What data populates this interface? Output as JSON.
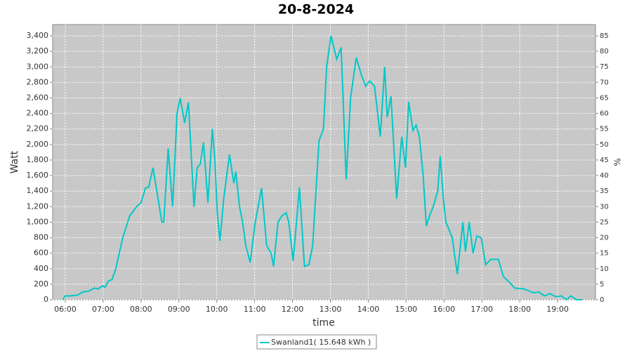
{
  "chart_data": {
    "type": "line",
    "title": "20-8-2024",
    "x_label": "time",
    "y_label": "Watt",
    "y2_label": "%",
    "x": [
      "05:56",
      "06:00",
      "06:08",
      "06:19",
      "06:28",
      "06:37",
      "06:46",
      "06:52",
      "06:59",
      "07:03",
      "07:08",
      "07:14",
      "07:20",
      "07:31",
      "07:42",
      "07:53",
      "08:00",
      "08:07",
      "08:12",
      "08:19",
      "08:27",
      "08:33",
      "08:36",
      "08:43",
      "08:50",
      "08:57",
      "09:02",
      "09:09",
      "09:15",
      "09:24",
      "09:29",
      "09:34",
      "09:39",
      "09:46",
      "09:53",
      "09:57",
      "10:01",
      "10:05",
      "10:11",
      "10:20",
      "10:27",
      "10:30",
      "10:36",
      "10:41",
      "10:46",
      "10:53",
      "11:01",
      "11:11",
      "11:19",
      "11:26",
      "11:30",
      "11:37",
      "11:43",
      "11:50",
      "11:54",
      "12:01",
      "12:11",
      "12:19",
      "12:26",
      "12:32",
      "12:42",
      "12:49",
      "12:54",
      "13:01",
      "13:10",
      "13:17",
      "13:25",
      "13:32",
      "13:41",
      "13:49",
      "13:56",
      "14:02",
      "14:10",
      "14:19",
      "14:26",
      "14:30",
      "14:36",
      "14:45",
      "14:53",
      "14:59",
      "15:04",
      "15:11",
      "15:16",
      "15:21",
      "15:27",
      "15:32",
      "15:38",
      "15:43",
      "15:50",
      "15:54",
      "15:59",
      "16:03",
      "16:13",
      "16:21",
      "16:30",
      "16:34",
      "16:40",
      "16:46",
      "16:52",
      "16:59",
      "17:06",
      "17:14",
      "17:26",
      "17:34",
      "17:43",
      "17:52",
      "18:07",
      "18:21",
      "18:30",
      "18:39",
      "18:48",
      "18:57",
      "19:06",
      "19:14",
      "19:21",
      "19:30",
      "19:39"
    ],
    "series": [
      {
        "name": "Swanland1( 15.648 kWh )",
        "color": "#00c8c8",
        "values": [
          0,
          50,
          50,
          60,
          100,
          110,
          150,
          140,
          180,
          160,
          240,
          260,
          400,
          800,
          1080,
          1200,
          1250,
          1440,
          1450,
          1700,
          1300,
          1000,
          1000,
          1950,
          1200,
          2400,
          2600,
          2280,
          2540,
          1200,
          1700,
          1750,
          2030,
          1250,
          2200,
          1800,
          1100,
          760,
          1300,
          1870,
          1500,
          1650,
          1200,
          1000,
          700,
          480,
          1000,
          1440,
          700,
          600,
          430,
          1000,
          1080,
          1120,
          1000,
          500,
          1450,
          430,
          450,
          700,
          2050,
          2200,
          3000,
          3400,
          3100,
          3250,
          1550,
          2600,
          3120,
          2900,
          2750,
          2820,
          2750,
          2100,
          3000,
          2350,
          2620,
          1300,
          2100,
          1700,
          2550,
          2180,
          2250,
          2100,
          1600,
          950,
          1100,
          1200,
          1400,
          1850,
          1300,
          1000,
          800,
          330,
          1000,
          620,
          1000,
          600,
          820,
          800,
          450,
          520,
          520,
          300,
          230,
          150,
          140,
          90,
          100,
          50,
          80,
          40,
          50,
          0,
          50,
          0,
          0
        ]
      }
    ],
    "xlim": [
      "05:40",
      "20:00"
    ],
    "xticks": [
      "06:00",
      "07:00",
      "08:00",
      "09:00",
      "10:00",
      "11:00",
      "12:00",
      "13:00",
      "14:00",
      "15:00",
      "16:00",
      "17:00",
      "18:00",
      "19:00"
    ],
    "ylim": [
      0,
      3545
    ],
    "yticks": [
      0,
      200,
      400,
      600,
      800,
      {
        "value": 1000,
        "label": "1,000"
      },
      {
        "value": 1200,
        "label": "1,200"
      },
      {
        "value": 1400,
        "label": "1,400"
      },
      {
        "value": 1600,
        "label": "1,600"
      },
      {
        "value": 1800,
        "label": "1,800"
      },
      {
        "value": 2000,
        "label": "2,000"
      },
      {
        "value": 2200,
        "label": "2,200"
      },
      {
        "value": 2400,
        "label": "2,400"
      },
      {
        "value": 2600,
        "label": "2,600"
      },
      {
        "value": 2800,
        "label": "2,800"
      },
      {
        "value": 3000,
        "label": "3,000"
      },
      {
        "value": 3200,
        "label": "3,200"
      },
      {
        "value": 3400,
        "label": "3,400"
      }
    ],
    "y2lim": [
      0,
      88.6
    ],
    "y2ticks": [
      0,
      5,
      10,
      15,
      20,
      25,
      30,
      35,
      40,
      45,
      50,
      55,
      60,
      65,
      70,
      75,
      80,
      85
    ],
    "grid": true
  }
}
